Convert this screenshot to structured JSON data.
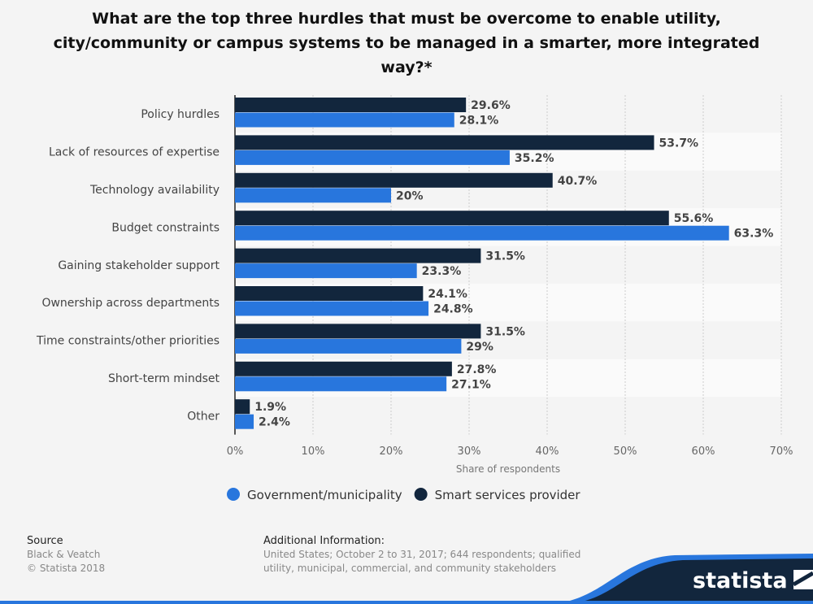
{
  "title": "What are the top three hurdles that must be overcome to enable utility, city/community or campus systems to be managed in a smarter, more integrated way?*",
  "chart_data": {
    "type": "bar",
    "orientation": "horizontal",
    "categories": [
      "Policy hurdles",
      "Lack of resources of expertise",
      "Technology availability",
      "Budget constraints",
      "Gaining stakeholder support",
      "Ownership across departments",
      "Time constraints/other priorities",
      "Short-term mindset",
      "Other"
    ],
    "series": [
      {
        "name": "Smart services provider",
        "color": "#12263d",
        "values": [
          29.6,
          53.7,
          40.7,
          55.6,
          31.5,
          24.1,
          31.5,
          27.8,
          1.9
        ],
        "labels": [
          "29.6%",
          "53.7%",
          "40.7%",
          "55.6%",
          "31.5%",
          "24.1%",
          "31.5%",
          "27.8%",
          "1.9%"
        ]
      },
      {
        "name": "Government/municipality",
        "color": "#2876dd",
        "values": [
          28.1,
          35.2,
          20,
          63.3,
          23.3,
          24.8,
          29,
          27.1,
          2.4
        ],
        "labels": [
          "28.1%",
          "35.2%",
          "20%",
          "63.3%",
          "23.3%",
          "24.8%",
          "29%",
          "27.1%",
          "2.4%"
        ]
      }
    ],
    "xlabel": "Share of respondents",
    "xlim": [
      0,
      70
    ],
    "ticks": [
      "0%",
      "10%",
      "20%",
      "30%",
      "40%",
      "50%",
      "60%",
      "70%"
    ],
    "grid": true,
    "legend": "bottom",
    "legend_order": [
      "Government/municipality",
      "Smart services provider"
    ]
  },
  "footer": {
    "source_label": "Source",
    "source": "Black & Veatch",
    "copyright": "© Statista 2018",
    "info_label": "Additional Information:",
    "info_line1": "United States; October 2 to 31, 2017; 644 respondents; qualified",
    "info_line2": "utility, municipal, commercial, and community stakeholders",
    "logo": "statista"
  }
}
